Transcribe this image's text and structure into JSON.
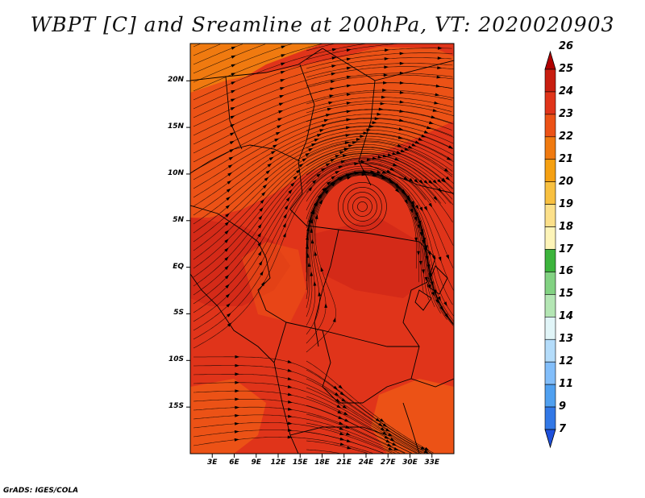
{
  "title": "WBPT [C] and Sreamline at 200hPa, VT: 2020020903",
  "credit": "GrADS: IGES/COLA",
  "map": {
    "lon_range": [
      0,
      36
    ],
    "lat_range": [
      -20,
      24
    ],
    "lat_ticks": [
      {
        "value": 20,
        "label": "20N"
      },
      {
        "value": 15,
        "label": "15N"
      },
      {
        "value": 10,
        "label": "10N"
      },
      {
        "value": 5,
        "label": "5N"
      },
      {
        "value": 0,
        "label": "EQ"
      },
      {
        "value": -5,
        "label": "5S"
      },
      {
        "value": -10,
        "label": "10S"
      },
      {
        "value": -15,
        "label": "15S"
      }
    ],
    "lon_ticks": [
      {
        "value": 3,
        "label": "3E"
      },
      {
        "value": 6,
        "label": "6E"
      },
      {
        "value": 9,
        "label": "9E"
      },
      {
        "value": 12,
        "label": "12E"
      },
      {
        "value": 15,
        "label": "15E"
      },
      {
        "value": 18,
        "label": "18E"
      },
      {
        "value": 21,
        "label": "21E"
      },
      {
        "value": 24,
        "label": "24E"
      },
      {
        "value": 27,
        "label": "27E"
      },
      {
        "value": 30,
        "label": "30E"
      },
      {
        "value": 33,
        "label": "33E"
      }
    ],
    "field_colors": {
      "background": "#e0341a",
      "warm": "#ec5216",
      "cool": "#d42a18",
      "hot": "#f07a10"
    },
    "vortex_center": {
      "lon": 23.5,
      "lat": 6.5
    }
  },
  "colorbar": {
    "levels": [
      "26",
      "25",
      "24",
      "23",
      "22",
      "21",
      "20",
      "19",
      "18",
      "17",
      "16",
      "15",
      "14",
      "13",
      "12",
      "11",
      "9",
      "7"
    ],
    "colors": [
      "#b00000",
      "#c81e10",
      "#e0341a",
      "#ec5216",
      "#f07a10",
      "#f5a012",
      "#f8c040",
      "#fce08a",
      "#fdf4b8",
      "#3cb43c",
      "#82d282",
      "#b4e6b4",
      "#e1f5f8",
      "#b4dcfa",
      "#82befa",
      "#50a0f0",
      "#3278e6",
      "#1e50dc"
    ]
  }
}
